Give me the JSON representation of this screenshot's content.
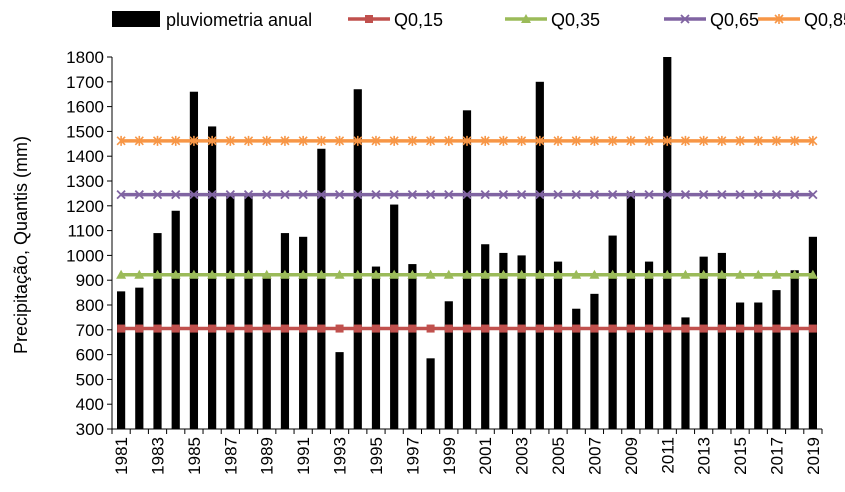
{
  "chart_data": {
    "type": "bar",
    "title": "",
    "xlabel": "",
    "ylabel": "Precipitação, Quantis (mm)",
    "ylim": [
      300,
      1800
    ],
    "ytick_step": 100,
    "grid": false,
    "legend_position": "top",
    "x": [
      1981,
      1982,
      1983,
      1984,
      1985,
      1986,
      1987,
      1988,
      1989,
      1990,
      1991,
      1992,
      1993,
      1994,
      1995,
      1996,
      1997,
      1998,
      1999,
      2000,
      2001,
      2002,
      2003,
      2004,
      2005,
      2006,
      2007,
      2008,
      2009,
      2010,
      2011,
      2012,
      2013,
      2014,
      2015,
      2016,
      2017,
      2018,
      2019
    ],
    "x_tick_labels": [
      "1981",
      "1983",
      "1985",
      "1987",
      "1989",
      "1991",
      "1993",
      "1995",
      "1997",
      "1999",
      "2001",
      "2003",
      "2005",
      "2007",
      "2009",
      "2011",
      "2013",
      "2015",
      "2017",
      "2019"
    ],
    "bar_series": {
      "name": "pluviometria anual",
      "color": "#000000",
      "values": [
        855,
        870,
        1090,
        1180,
        1660,
        1520,
        1240,
        1240,
        915,
        1090,
        1075,
        1430,
        610,
        1670,
        955,
        1205,
        965,
        585,
        815,
        1585,
        1045,
        1010,
        1000,
        1700,
        975,
        785,
        845,
        1080,
        1255,
        975,
        1800,
        750,
        995,
        1010,
        810,
        810,
        860,
        940,
        1075
      ]
    },
    "line_series": [
      {
        "name": "Q0,15",
        "value": 705,
        "color": "#C0504D",
        "marker": "square"
      },
      {
        "name": "Q0,35",
        "value": 922,
        "color": "#9BBB59",
        "marker": "triangle"
      },
      {
        "name": "Q0,65",
        "value": 1245,
        "color": "#8064A2",
        "marker": "x"
      },
      {
        "name": "Q0,85",
        "value": 1462,
        "color": "#F79646",
        "marker": "star"
      }
    ]
  }
}
